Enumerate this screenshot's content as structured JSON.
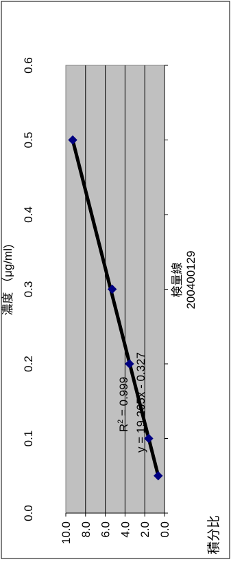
{
  "chart_data": {
    "type": "scatter",
    "title": "200400129",
    "subtitle": "検量線",
    "xlabel": "濃度 （μg/ml)",
    "ylabel": "積分比",
    "xlim": [
      0.0,
      0.6
    ],
    "ylim": [
      0.0,
      10.0
    ],
    "xticks": [
      "0.0",
      "0.1",
      "0.2",
      "0.3",
      "0.4",
      "0.5",
      "0.6"
    ],
    "yticks": [
      "0.0",
      "2.0",
      "4.0",
      "6.0",
      "8.0",
      "10.0"
    ],
    "grid": true,
    "plot_background": "#c0c0c0",
    "marker_color": "#000080",
    "trendline_color": "#000000",
    "points": [
      {
        "x": 0.05,
        "y": 0.64
      },
      {
        "x": 0.1,
        "y": 1.6
      },
      {
        "x": 0.2,
        "y": 3.55
      },
      {
        "x": 0.3,
        "y": 5.3
      },
      {
        "x": 0.5,
        "y": 9.3
      }
    ],
    "trendline": {
      "slope": 19.265,
      "intercept": -0.327,
      "x_start": 0.05,
      "x_end": 0.5
    },
    "equation_text": "y = 19.265x - 0.327",
    "r2_label": "R",
    "r2_exp": "2",
    "r2_value": " = 0.999"
  }
}
